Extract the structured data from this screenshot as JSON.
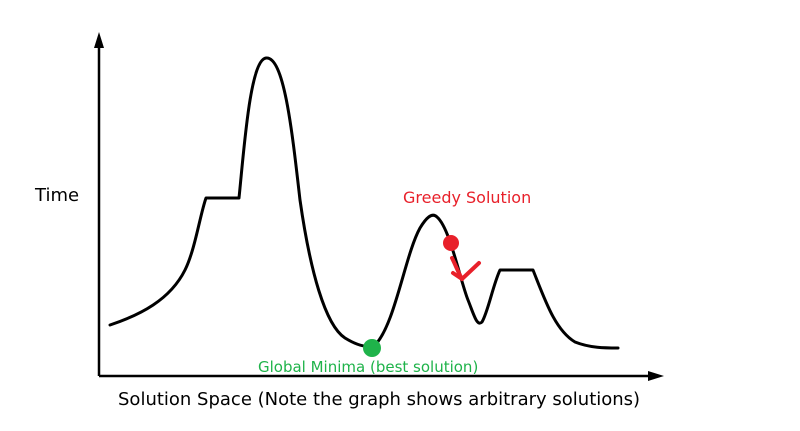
{
  "diagram": {
    "y_axis_label": "Time",
    "x_axis_label": "Solution Space (Note the graph shows arbitrary solutions)",
    "greedy_label": "Greedy Solution",
    "global_label": "Global Minima (best solution)",
    "colors": {
      "curve": "#000000",
      "greedy": "#e8202a",
      "global": "#1fb34a",
      "axis": "#000000"
    }
  }
}
